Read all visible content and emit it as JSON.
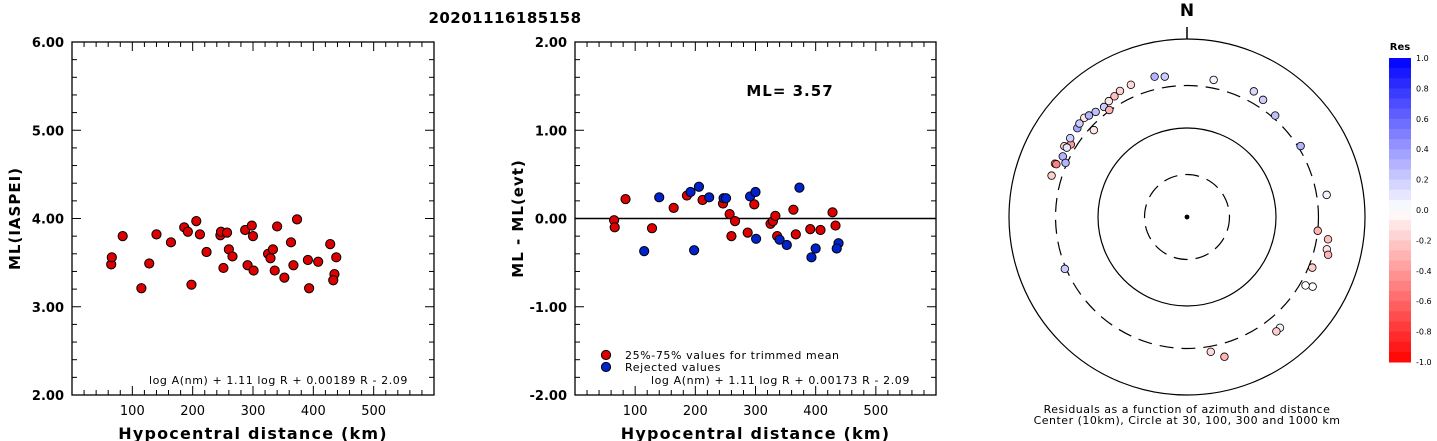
{
  "page_title": "20201116185158",
  "chart_data": [
    {
      "type": "scatter",
      "title": "",
      "xlabel": "Hypocentral distance (km)",
      "ylabel": "ML(IASPEI)",
      "xlim": [
        0,
        600
      ],
      "ylim": [
        2.0,
        6.0
      ],
      "x_ticks": [
        "100",
        "200",
        "300",
        "400",
        "500"
      ],
      "y_ticks": [
        "2.00",
        "3.00",
        "4.00",
        "5.00",
        "6.00"
      ],
      "formula": "log A(nm) + 1.11 log R + 0.00189 R - 2.09",
      "points": [
        [
          65,
          3.48
        ],
        [
          66,
          3.56
        ],
        [
          84,
          3.8
        ],
        [
          115,
          3.21
        ],
        [
          128,
          3.49
        ],
        [
          140,
          3.82
        ],
        [
          164,
          3.73
        ],
        [
          186,
          3.9
        ],
        [
          192,
          3.85
        ],
        [
          198,
          3.25
        ],
        [
          206,
          3.97
        ],
        [
          212,
          3.82
        ],
        [
          223,
          3.62
        ],
        [
          246,
          3.81
        ],
        [
          247,
          3.85
        ],
        [
          251,
          3.44
        ],
        [
          257,
          3.84
        ],
        [
          260,
          3.65
        ],
        [
          266,
          3.57
        ],
        [
          287,
          3.87
        ],
        [
          291,
          3.47
        ],
        [
          298,
          3.92
        ],
        [
          300,
          3.8
        ],
        [
          301,
          3.41
        ],
        [
          325,
          3.6
        ],
        [
          329,
          3.55
        ],
        [
          333,
          3.65
        ],
        [
          336,
          3.41
        ],
        [
          340,
          3.91
        ],
        [
          352,
          3.33
        ],
        [
          363,
          3.73
        ],
        [
          367,
          3.47
        ],
        [
          373,
          3.99
        ],
        [
          391,
          3.53
        ],
        [
          393,
          3.21
        ],
        [
          408,
          3.51
        ],
        [
          428,
          3.71
        ],
        [
          438,
          3.56
        ],
        [
          435,
          3.37
        ],
        [
          433,
          3.3
        ]
      ]
    },
    {
      "type": "scatter",
      "title": "",
      "xlabel": "Hypocentral distance (km)",
      "ylabel": "ML - ML(evt)",
      "xlim": [
        0,
        600
      ],
      "ylim": [
        -2.0,
        2.0
      ],
      "x_ticks": [
        "100",
        "200",
        "300",
        "400",
        "500"
      ],
      "y_ticks": [
        "-2.00",
        "-1.00",
        "0.00",
        "1.00",
        "2.00"
      ],
      "annotation": "ML= 3.57",
      "formula": "log A(nm) + 1.11 log R + 0.00173 R - 2.09",
      "legend": {
        "position": "bottom-left",
        "items": [
          {
            "label": "25%-75% values for trimmed mean",
            "color": "#dd0000"
          },
          {
            "label": "Rejected values",
            "color": "#0022cc"
          }
        ]
      },
      "series": [
        {
          "name": "25%-75% values for trimmed mean",
          "color": "#dd0000",
          "points": [
            [
              65,
              -0.02
            ],
            [
              66,
              -0.1
            ],
            [
              84,
              0.22
            ],
            [
              128,
              -0.11
            ],
            [
              164,
              0.12
            ],
            [
              186,
              0.26
            ],
            [
              212,
              0.21
            ],
            [
              246,
              0.17
            ],
            [
              257,
              0.05
            ],
            [
              260,
              -0.2
            ],
            [
              266,
              -0.03
            ],
            [
              287,
              -0.16
            ],
            [
              298,
              0.16
            ],
            [
              325,
              -0.06
            ],
            [
              329,
              -0.03
            ],
            [
              333,
              0.03
            ],
            [
              336,
              -0.2
            ],
            [
              363,
              0.1
            ],
            [
              367,
              -0.18
            ],
            [
              391,
              -0.12
            ],
            [
              408,
              -0.13
            ],
            [
              428,
              0.07
            ],
            [
              433,
              -0.08
            ]
          ]
        },
        {
          "name": "Rejected values",
          "color": "#0022cc",
          "points": [
            [
              115,
              -0.37
            ],
            [
              140,
              0.24
            ],
            [
              192,
              0.3
            ],
            [
              198,
              -0.36
            ],
            [
              206,
              0.36
            ],
            [
              223,
              0.24
            ],
            [
              247,
              0.23
            ],
            [
              251,
              0.23
            ],
            [
              291,
              0.25
            ],
            [
              300,
              0.3
            ],
            [
              301,
              -0.23
            ],
            [
              340,
              -0.24
            ],
            [
              352,
              -0.3
            ],
            [
              373,
              0.35
            ],
            [
              393,
              -0.44
            ],
            [
              400,
              -0.34
            ],
            [
              438,
              -0.28
            ],
            [
              435,
              -0.34
            ]
          ]
        }
      ]
    },
    {
      "type": "scatter",
      "subtype": "polar",
      "north_label": "N",
      "caption_line1": "Residuals as a function of azimuth and distance",
      "caption_line2": "Center (10km), Circle at 30, 100, 300 and 1000 km",
      "circles_km": [
        30,
        100,
        300,
        1000
      ],
      "circle_styles": [
        "dashed",
        "solid",
        "dashed",
        "solid"
      ],
      "colorbar": {
        "title": "Res",
        "ticks": [
          "1.0",
          "0.8",
          "0.6",
          "0.4",
          "0.2",
          "0.0",
          "-0.2",
          "-0.4",
          "-0.6",
          "-0.8",
          "-1.0"
        ],
        "range": [
          -1.0,
          1.0
        ],
        "positive_color": "#0000ff",
        "negative_color": "#ff0000"
      },
      "points_az_dist_res": [
        [
          326,
          372,
          -0.1
        ],
        [
          329,
          382,
          -0.25
        ],
        [
          332,
          402,
          -0.18
        ],
        [
          337,
          411,
          -0.15
        ],
        [
          347,
          415,
          0.3
        ],
        [
          351,
          395,
          0.2
        ],
        [
          11,
          371,
          0.05
        ],
        [
          28,
          397,
          0.15
        ],
        [
          33,
          371,
          0.2
        ],
        [
          41,
          324,
          0.25
        ],
        [
          58,
          320,
          0.3
        ],
        [
          81,
          388,
          0.05
        ],
        [
          99,
          402,
          -0.25
        ],
        [
          103,
          410,
          -0.1
        ],
        [
          105,
          438,
          -0.3
        ],
        [
          119,
          411,
          0.0
        ],
        [
          140,
          422,
          0.05
        ],
        [
          142,
          428,
          -0.2
        ],
        [
          165,
          422,
          -0.3
        ],
        [
          170,
          345,
          -0.15
        ],
        [
          96,
          300,
          -0.3
        ],
        [
          112,
          330,
          -0.2
        ],
        [
          120,
          345,
          0.0
        ],
        [
          302,
          346,
          -0.4
        ],
        [
          292,
          398,
          -0.4
        ],
        [
          300,
          390,
          -0.2
        ],
        [
          304,
          383,
          0.2
        ],
        [
          309,
          385,
          0.35
        ],
        [
          311,
          399,
          0.2
        ],
        [
          314,
          402,
          -0.1
        ],
        [
          316,
          385,
          0.3
        ],
        [
          319,
          367,
          0.25
        ],
        [
          323,
          353,
          0.2
        ],
        [
          324,
          306,
          -0.3
        ],
        [
          296,
          357,
          0.3
        ],
        [
          300,
          362,
          0.1
        ],
        [
          292,
          383,
          -0.5
        ],
        [
          287,
          390,
          -0.2
        ],
        [
          247,
          310,
          0.2
        ],
        [
          313,
          270,
          -0.1
        ],
        [
          294,
          312,
          0.3
        ]
      ]
    }
  ]
}
